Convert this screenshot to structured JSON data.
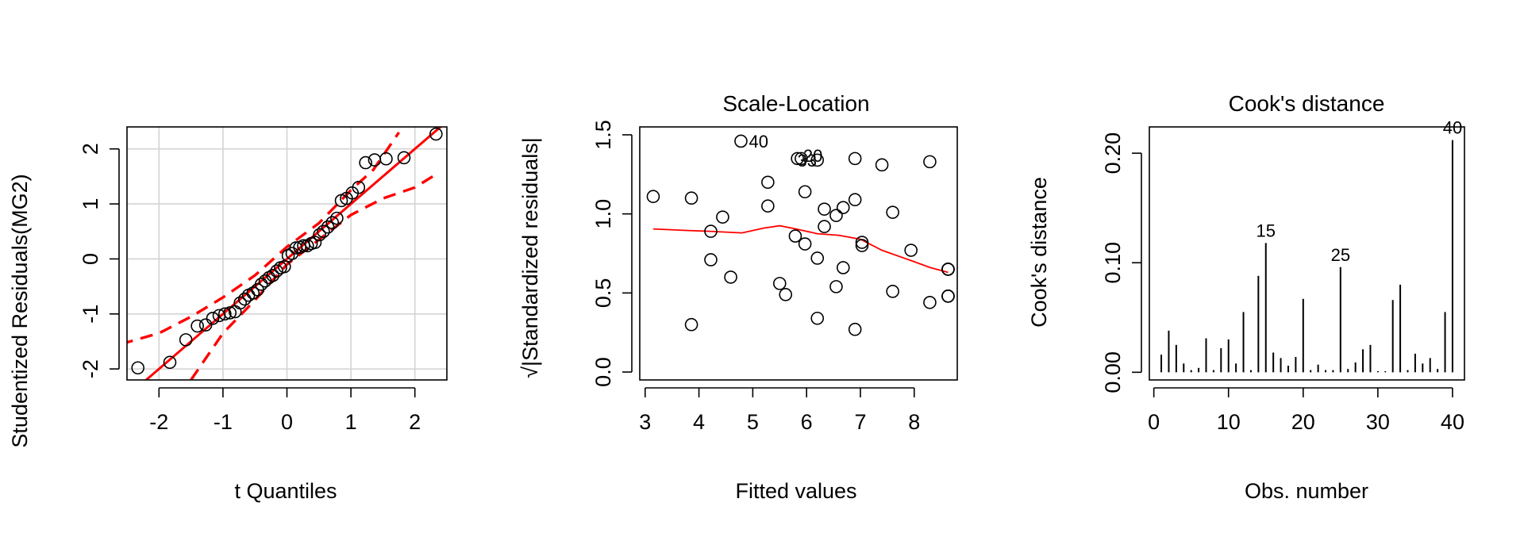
{
  "figure": {
    "panels_count": 3
  },
  "chart_data": [
    {
      "type": "scatter",
      "subtype": "qq-plot",
      "title": "",
      "xlabel": "t Quantiles",
      "ylabel": "Studentized Residuals(MG2)",
      "xlim": [
        -2.5,
        2.5
      ],
      "ylim": [
        -2.2,
        2.4
      ],
      "xticks": [
        -2,
        -1,
        0,
        1,
        2
      ],
      "yticks": [
        -2,
        -1,
        0,
        1,
        2
      ],
      "grid": true,
      "colors": {
        "points": "#000000",
        "reference_line": "#ff0000",
        "envelope": "#ff0000",
        "grid": "#d3d3d3"
      },
      "points": {
        "x": [
          -2.33,
          -1.83,
          -1.58,
          -1.4,
          -1.27,
          -1.16,
          -1.06,
          -0.97,
          -0.89,
          -0.81,
          -0.73,
          -0.66,
          -0.6,
          -0.53,
          -0.46,
          -0.4,
          -0.34,
          -0.28,
          -0.22,
          -0.16,
          -0.1,
          -0.04,
          0.02,
          0.08,
          0.14,
          0.2,
          0.26,
          0.32,
          0.38,
          0.44,
          0.51,
          0.57,
          0.64,
          0.71,
          0.78,
          0.85,
          0.93,
          1.02,
          1.12,
          1.23,
          1.37,
          1.55,
          1.83,
          2.33
        ],
        "y": [
          -1.98,
          -1.88,
          -1.47,
          -1.22,
          -1.2,
          -1.08,
          -1.03,
          -1.0,
          -0.98,
          -0.96,
          -0.8,
          -0.73,
          -0.66,
          -0.62,
          -0.56,
          -0.46,
          -0.4,
          -0.34,
          -0.3,
          -0.22,
          -0.16,
          -0.14,
          0.06,
          0.1,
          0.2,
          0.21,
          0.24,
          0.24,
          0.28,
          0.3,
          0.44,
          0.5,
          0.58,
          0.66,
          0.74,
          1.06,
          1.1,
          1.2,
          1.3,
          1.75,
          1.8,
          1.82,
          1.84,
          2.27
        ]
      },
      "reference_line": {
        "intercept": 0.0,
        "slope": 1.0
      },
      "envelope_upper": {
        "x": [
          -2.6,
          -2.0,
          -1.5,
          -1.0,
          -0.5,
          0.0,
          0.5,
          1.0,
          1.35,
          1.75
        ],
        "y": [
          -1.55,
          -1.35,
          -1.05,
          -0.7,
          -0.3,
          0.22,
          0.65,
          1.25,
          1.62,
          2.3
        ]
      },
      "envelope_lower": {
        "x": [
          -1.5,
          -1.0,
          -0.5,
          0.0,
          0.5,
          1.0,
          1.5,
          2.0,
          2.35
        ],
        "y": [
          -2.2,
          -1.35,
          -0.75,
          -0.1,
          0.35,
          0.8,
          1.1,
          1.3,
          1.55
        ]
      }
    },
    {
      "type": "scatter",
      "subtype": "scale-location",
      "title": "Scale-Location",
      "xlabel": "Fitted values",
      "ylabel": "√|Standardized residuals|",
      "xlim": [
        2.9,
        8.8
      ],
      "ylim": [
        -0.05,
        1.55
      ],
      "xticks": [
        3,
        4,
        5,
        6,
        7,
        8
      ],
      "yticks": [
        0.0,
        0.5,
        1.0,
        1.5
      ],
      "yticklabels": [
        "0.0",
        "0.5",
        "1.0",
        "1.5"
      ],
      "grid": false,
      "colors": {
        "points": "#000000",
        "smoother": "#ff0000"
      },
      "points": {
        "x": [
          3.15,
          3.86,
          3.86,
          4.22,
          4.22,
          4.44,
          4.59,
          4.78,
          5.28,
          5.28,
          5.5,
          5.61,
          5.79,
          5.83,
          5.9,
          5.97,
          5.97,
          6.2,
          6.2,
          6.2,
          6.33,
          6.33,
          6.55,
          6.55,
          6.68,
          6.68,
          6.9,
          6.9,
          6.9,
          7.03,
          7.03,
          7.4,
          7.6,
          7.6,
          7.94,
          8.29,
          8.29,
          8.63,
          8.63,
          8.63,
          8.63,
          8.63,
          8.63,
          8.63
        ],
        "y": [
          1.11,
          1.1,
          0.3,
          0.89,
          0.71,
          0.98,
          0.6,
          1.46,
          1.2,
          1.05,
          0.56,
          0.49,
          0.86,
          1.35,
          1.35,
          1.14,
          0.81,
          1.34,
          0.34,
          0.72,
          1.03,
          0.92,
          0.99,
          0.54,
          1.04,
          0.66,
          1.09,
          0.27,
          1.35,
          0.82,
          0.8,
          1.31,
          1.01,
          0.51,
          0.77,
          1.33,
          0.44,
          0.65,
          0.48,
          0.65,
          0.48,
          0.65,
          0.48,
          0.65
        ]
      },
      "annotations": [
        {
          "label": "40",
          "x": 4.78,
          "y": 1.46
        },
        {
          "label": "20",
          "x": 5.79,
          "y": 1.37
        },
        {
          "label": "33",
          "x": 5.68,
          "y": 1.34
        }
      ],
      "smoother": {
        "x": [
          3.15,
          3.8,
          4.2,
          4.8,
          5.2,
          5.5,
          5.8,
          6.2,
          6.6,
          7.0,
          7.4,
          7.9,
          8.3,
          8.63
        ],
        "y": [
          0.905,
          0.895,
          0.89,
          0.88,
          0.91,
          0.925,
          0.905,
          0.875,
          0.865,
          0.84,
          0.77,
          0.71,
          0.66,
          0.63
        ]
      }
    },
    {
      "type": "bar",
      "subtype": "cooks-distance",
      "title": "Cook's distance",
      "xlabel": "Obs. number",
      "ylabel": "Cook's distance",
      "xlim": [
        -0.6,
        41.6
      ],
      "ylim": [
        -0.007,
        0.224
      ],
      "xticks": [
        0,
        10,
        20,
        30,
        40
      ],
      "yticks": [
        0.0,
        0.1,
        0.2
      ],
      "yticklabels": [
        "0.00",
        "0.10",
        "0.20"
      ],
      "grid": false,
      "colors": {
        "bars": "#000000"
      },
      "x": [
        1,
        2,
        3,
        4,
        5,
        6,
        7,
        8,
        9,
        10,
        11,
        12,
        13,
        14,
        15,
        16,
        17,
        18,
        19,
        20,
        21,
        22,
        23,
        24,
        25,
        26,
        27,
        28,
        29,
        30,
        31,
        32,
        33,
        34,
        35,
        36,
        37,
        38,
        39,
        40
      ],
      "values": [
        0.016,
        0.038,
        0.025,
        0.008,
        0.002,
        0.004,
        0.031,
        0.002,
        0.022,
        0.03,
        0.008,
        0.055,
        0.002,
        0.088,
        0.118,
        0.018,
        0.013,
        0.006,
        0.014,
        0.067,
        0.002,
        0.007,
        0.002,
        0.002,
        0.096,
        0.003,
        0.009,
        0.021,
        0.025,
        0.001,
        0.001,
        0.066,
        0.08,
        0.002,
        0.017,
        0.008,
        0.013,
        0.003,
        0.055,
        0.212
      ],
      "annotations": [
        {
          "label": "15",
          "x": 15,
          "y": 0.118
        },
        {
          "label": "25",
          "x": 25,
          "y": 0.096
        },
        {
          "label": "40",
          "x": 40,
          "y": 0.212
        }
      ]
    }
  ]
}
